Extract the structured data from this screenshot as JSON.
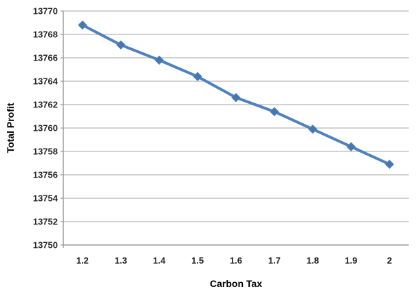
{
  "chart_data": {
    "type": "line",
    "title": "",
    "xlabel": "Carbon Tax",
    "ylabel": "Total Profit",
    "categories": [
      "1.2",
      "1.3",
      "1.4",
      "1.5",
      "1.6",
      "1.7",
      "1.8",
      "1.9",
      "2"
    ],
    "series": [
      {
        "name": "Total Profit",
        "values": [
          13768.8,
          13767.1,
          13765.8,
          13764.4,
          13762.6,
          13761.4,
          13759.9,
          13758.4,
          13756.9
        ],
        "color": "#4F81BD",
        "marker": "diamond"
      }
    ],
    "ylim": [
      13750,
      13770
    ],
    "y_tick_step": 2,
    "y_tick_labels": [
      "13750",
      "13752",
      "13754",
      "13756",
      "13758",
      "13760",
      "13762",
      "13764",
      "13766",
      "13768",
      "13770"
    ],
    "grid": true,
    "legend": false,
    "colors": {
      "series_line": "#4F81BD",
      "marker_fill": "#4876AE",
      "gridline": "#B8B8B8",
      "axis_line": "#9B9B9B",
      "tick_text": "#262626",
      "background": "#FFFFFF"
    }
  }
}
